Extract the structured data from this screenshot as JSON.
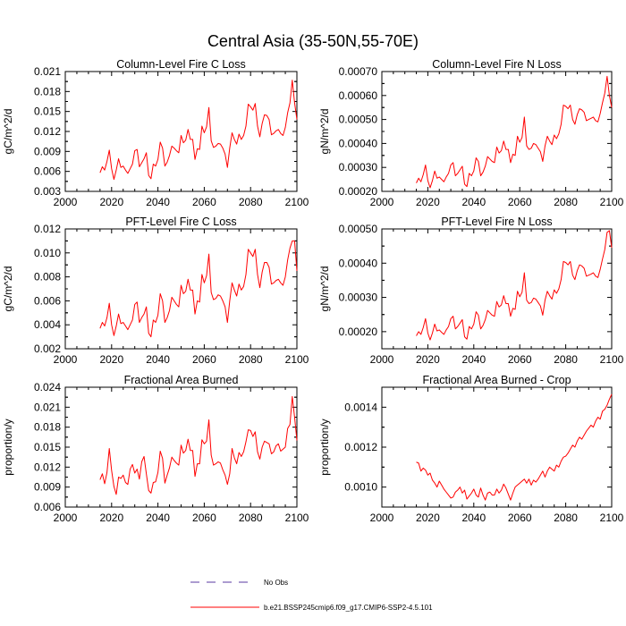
{
  "figure": {
    "title": "Central Asia (35-50N,55-70E)",
    "series_color": "#ff0000"
  },
  "legend": {
    "items": [
      {
        "label": "No Obs",
        "style": "dashed",
        "color": "#5a3aa0"
      },
      {
        "label": "b.e21.BSSP245cmip6.f09_g17.CMIP6-SSP2-4.5.101",
        "style": "solid",
        "color": "#ff0000"
      }
    ]
  },
  "chart_data": [
    {
      "type": "line",
      "title": "Column-Level Fire C Loss",
      "ylabel": "gC/m^2/d",
      "xlim": [
        2000,
        2100
      ],
      "ylim": [
        0.003,
        0.021
      ],
      "xticks": [
        2000,
        2020,
        2040,
        2060,
        2080,
        2100
      ],
      "yticks": [
        0.003,
        0.006,
        0.009,
        0.012,
        0.015,
        0.018,
        0.021
      ],
      "ytick_labels": [
        "0.003",
        "0.006",
        "0.009",
        "0.012",
        "0.015",
        "0.018",
        "0.021"
      ],
      "x_start": 2015,
      "values": [
        0.0058,
        0.0067,
        0.0062,
        0.0075,
        0.0092,
        0.0064,
        0.0048,
        0.0062,
        0.0079,
        0.0066,
        0.0068,
        0.0062,
        0.0057,
        0.0064,
        0.0071,
        0.0091,
        0.0093,
        0.0067,
        0.0073,
        0.0079,
        0.0088,
        0.0054,
        0.0049,
        0.0071,
        0.0068,
        0.0078,
        0.0104,
        0.0095,
        0.0068,
        0.0074,
        0.0084,
        0.0098,
        0.0095,
        0.0091,
        0.0088,
        0.0114,
        0.0103,
        0.0107,
        0.0123,
        0.0108,
        0.0108,
        0.0078,
        0.0094,
        0.0093,
        0.0128,
        0.0118,
        0.0127,
        0.0156,
        0.0106,
        0.0096,
        0.0098,
        0.0102,
        0.0101,
        0.0095,
        0.0086,
        0.0066,
        0.0095,
        0.0118,
        0.0108,
        0.0101,
        0.0116,
        0.0108,
        0.0114,
        0.0128,
        0.0161,
        0.0157,
        0.0152,
        0.0162,
        0.0128,
        0.0112,
        0.0132,
        0.0145,
        0.0144,
        0.0138,
        0.0115,
        0.0117,
        0.0121,
        0.0123,
        0.0117,
        0.0114,
        0.0126,
        0.0148,
        0.0163,
        0.0197,
        0.0163,
        0.0138
      ]
    },
    {
      "type": "line",
      "title": "Column-Level Fire N Loss",
      "ylabel": "gN/m^2/d",
      "xlim": [
        2000,
        2100
      ],
      "ylim": [
        0.0002,
        0.0007
      ],
      "xticks": [
        2000,
        2020,
        2040,
        2060,
        2080,
        2100
      ],
      "yticks": [
        0.0002,
        0.0003,
        0.0004,
        0.0005,
        0.0006,
        0.0007
      ],
      "ytick_labels": [
        "0.00020",
        "0.00030",
        "0.00040",
        "0.00050",
        "0.00060",
        "0.00070"
      ],
      "x_start": 2015,
      "values": [
        0.000235,
        0.000255,
        0.00024,
        0.00027,
        0.00031,
        0.000245,
        0.000215,
        0.000245,
        0.000285,
        0.000255,
        0.00026,
        0.00025,
        0.00024,
        0.00026,
        0.000275,
        0.00031,
        0.00032,
        0.000265,
        0.000275,
        0.00029,
        0.000305,
        0.00023,
        0.00022,
        0.000275,
        0.000265,
        0.000285,
        0.00034,
        0.000325,
        0.000265,
        0.00028,
        0.000305,
        0.000345,
        0.000335,
        0.000325,
        0.00032,
        0.000385,
        0.00036,
        0.00037,
        0.00041,
        0.000375,
        0.000375,
        0.00032,
        0.000355,
        0.00035,
        0.00043,
        0.000405,
        0.000425,
        0.00051,
        0.00039,
        0.000375,
        0.00038,
        0.0004,
        0.000395,
        0.00038,
        0.000365,
        0.000325,
        0.00039,
        0.00043,
        0.00041,
        0.000395,
        0.000435,
        0.00042,
        0.00044,
        0.00048,
        0.00056,
        0.000555,
        0.000545,
        0.00056,
        0.0005,
        0.00048,
        0.00052,
        0.000545,
        0.00054,
        0.00053,
        0.000495,
        0.0005,
        0.000505,
        0.00051,
        0.000495,
        0.00049,
        0.000525,
        0.00057,
        0.00061,
        0.00068,
        0.0006,
        0.00055
      ]
    },
    {
      "type": "line",
      "title": "PFT-Level Fire C Loss",
      "ylabel": "gC/m^2/d",
      "xlim": [
        2000,
        2100
      ],
      "ylim": [
        0.002,
        0.012
      ],
      "xticks": [
        2000,
        2020,
        2040,
        2060,
        2080,
        2100
      ],
      "yticks": [
        0.002,
        0.004,
        0.006,
        0.008,
        0.01,
        0.012
      ],
      "ytick_labels": [
        "0.002",
        "0.004",
        "0.006",
        "0.008",
        "0.010",
        "0.012"
      ],
      "x_start": 2015,
      "values": [
        0.0037,
        0.0042,
        0.0039,
        0.0046,
        0.0058,
        0.004,
        0.0031,
        0.0039,
        0.0049,
        0.0041,
        0.0042,
        0.0039,
        0.0036,
        0.004,
        0.0044,
        0.0057,
        0.0059,
        0.0042,
        0.0046,
        0.0049,
        0.0055,
        0.0033,
        0.003,
        0.0044,
        0.0042,
        0.0048,
        0.0066,
        0.006,
        0.0042,
        0.0046,
        0.0052,
        0.0063,
        0.006,
        0.0057,
        0.0055,
        0.0073,
        0.0066,
        0.0068,
        0.0078,
        0.0069,
        0.0069,
        0.0049,
        0.006,
        0.0059,
        0.0082,
        0.0075,
        0.0081,
        0.0099,
        0.0067,
        0.0061,
        0.0062,
        0.0065,
        0.0064,
        0.006,
        0.0055,
        0.0042,
        0.006,
        0.0075,
        0.0069,
        0.0064,
        0.0074,
        0.0069,
        0.0072,
        0.0082,
        0.0103,
        0.01,
        0.0097,
        0.0103,
        0.0082,
        0.0071,
        0.0084,
        0.0092,
        0.0092,
        0.0088,
        0.0074,
        0.0075,
        0.0077,
        0.0078,
        0.0075,
        0.0073,
        0.008,
        0.0094,
        0.0104,
        0.011,
        0.011,
        0.0085
      ]
    },
    {
      "type": "line",
      "title": "PFT-Level Fire N Loss",
      "ylabel": "gN/m^2/d",
      "xlim": [
        2000,
        2100
      ],
      "ylim": [
        0.00015,
        0.0005
      ],
      "xticks": [
        2000,
        2020,
        2040,
        2060,
        2080,
        2100
      ],
      "yticks": [
        0.0002,
        0.0003,
        0.0004,
        0.0005
      ],
      "ytick_labels": [
        "0.00020",
        "0.00030",
        "0.00040",
        "0.00050"
      ],
      "x_start": 2015,
      "values": [
        0.000188,
        0.0002,
        0.000192,
        0.000212,
        0.000238,
        0.000196,
        0.000176,
        0.000196,
        0.000222,
        0.000202,
        0.000205,
        0.000198,
        0.000192,
        0.000205,
        0.000215,
        0.000238,
        0.000245,
        0.000208,
        0.000215,
        0.000225,
        0.000235,
        0.000185,
        0.000178,
        0.000215,
        0.000208,
        0.000222,
        0.000258,
        0.000248,
        0.000208,
        0.000218,
        0.000235,
        0.000262,
        0.000255,
        0.000248,
        0.000245,
        0.000288,
        0.000272,
        0.000278,
        0.000305,
        0.000282,
        0.000282,
        0.000245,
        0.000268,
        0.000265,
        0.000318,
        0.000302,
        0.000315,
        0.000372,
        0.000292,
        0.000282,
        0.000285,
        0.000298,
        0.000295,
        0.000285,
        0.000275,
        0.000248,
        0.000292,
        0.000318,
        0.000305,
        0.000295,
        0.000322,
        0.000312,
        0.000325,
        0.000352,
        0.000405,
        0.000402,
        0.000395,
        0.000405,
        0.000365,
        0.000352,
        0.000378,
        0.000395,
        0.000392,
        0.000385,
        0.000362,
        0.000365,
        0.000368,
        0.000372,
        0.000362,
        0.000358,
        0.000382,
        0.000412,
        0.00044,
        0.00049,
        0.000495,
        0.000445
      ]
    },
    {
      "type": "line",
      "title": "Fractional Area Burned",
      "ylabel": "proportion/y",
      "xlim": [
        2000,
        2100
      ],
      "ylim": [
        0.006,
        0.024
      ],
      "xticks": [
        2000,
        2020,
        2040,
        2060,
        2080,
        2100
      ],
      "yticks": [
        0.006,
        0.009,
        0.012,
        0.015,
        0.018,
        0.021,
        0.024
      ],
      "ytick_labels": [
        "0.006",
        "0.009",
        "0.012",
        "0.015",
        "0.018",
        "0.021",
        "0.024"
      ],
      "x_start": 2015,
      "values": [
        0.0101,
        0.011,
        0.0095,
        0.0112,
        0.0148,
        0.0115,
        0.0091,
        0.0079,
        0.0105,
        0.0103,
        0.0108,
        0.0097,
        0.0094,
        0.0117,
        0.0124,
        0.0111,
        0.0117,
        0.0102,
        0.0128,
        0.0136,
        0.011,
        0.0085,
        0.0081,
        0.0097,
        0.0098,
        0.0112,
        0.0144,
        0.0133,
        0.0096,
        0.0108,
        0.0119,
        0.0135,
        0.013,
        0.0126,
        0.0123,
        0.0153,
        0.0141,
        0.0145,
        0.0162,
        0.0145,
        0.0145,
        0.0106,
        0.0125,
        0.0125,
        0.0161,
        0.0155,
        0.0159,
        0.0191,
        0.0138,
        0.0123,
        0.0125,
        0.0128,
        0.0126,
        0.0116,
        0.0108,
        0.0094,
        0.011,
        0.0148,
        0.0134,
        0.0125,
        0.0142,
        0.0136,
        0.0143,
        0.0158,
        0.0176,
        0.0175,
        0.0166,
        0.0173,
        0.0143,
        0.0132,
        0.015,
        0.0159,
        0.0157,
        0.0155,
        0.014,
        0.0143,
        0.0152,
        0.0155,
        0.0144,
        0.0147,
        0.015,
        0.0178,
        0.0184,
        0.0226,
        0.0195,
        0.016
      ]
    },
    {
      "type": "line",
      "title": "Fractional Area Burned - Crop",
      "ylabel": "proportion/y",
      "xlim": [
        2000,
        2100
      ],
      "ylim": [
        0.0009,
        0.0015
      ],
      "xticks": [
        2000,
        2020,
        2040,
        2060,
        2080,
        2100
      ],
      "yticks": [
        0.001,
        0.0012,
        0.0014
      ],
      "ytick_labels": [
        "0.0010",
        "0.0012",
        "0.0014"
      ],
      "x_start": 2015,
      "values": [
        0.001125,
        0.00112,
        0.00108,
        0.001095,
        0.001085,
        0.00106,
        0.00107,
        0.001035,
        0.00102,
        0.001,
        0.00103,
        0.00101,
        0.00099,
        0.000975,
        0.00096,
        0.000945,
        0.00095,
        0.000975,
        0.000985,
        0.001,
        0.00097,
        0.000985,
        0.00094,
        0.000955,
        0.00097,
        0.00099,
        0.00096,
        0.00095,
        0.000995,
        0.00096,
        0.000935,
        0.00097,
        0.000975,
        0.00096,
        0.00096,
        0.00099,
        0.00097,
        0.000985,
        0.001015,
        0.000995,
        0.000965,
        0.000935,
        0.00097,
        0.001,
        0.00101,
        0.00102,
        0.00103,
        0.00104,
        0.00102,
        0.00104,
        0.00101,
        0.001035,
        0.001025,
        0.00104,
        0.00106,
        0.00108,
        0.00105,
        0.00108,
        0.0011,
        0.00109,
        0.00108,
        0.00111,
        0.0011,
        0.00113,
        0.00115,
        0.001155,
        0.00117,
        0.00119,
        0.00121,
        0.0012,
        0.00123,
        0.00125,
        0.00124,
        0.00126,
        0.00128,
        0.001295,
        0.00131,
        0.0013,
        0.00133,
        0.00135,
        0.00134,
        0.00138,
        0.00139,
        0.00141,
        0.00144,
        0.001465
      ]
    }
  ]
}
